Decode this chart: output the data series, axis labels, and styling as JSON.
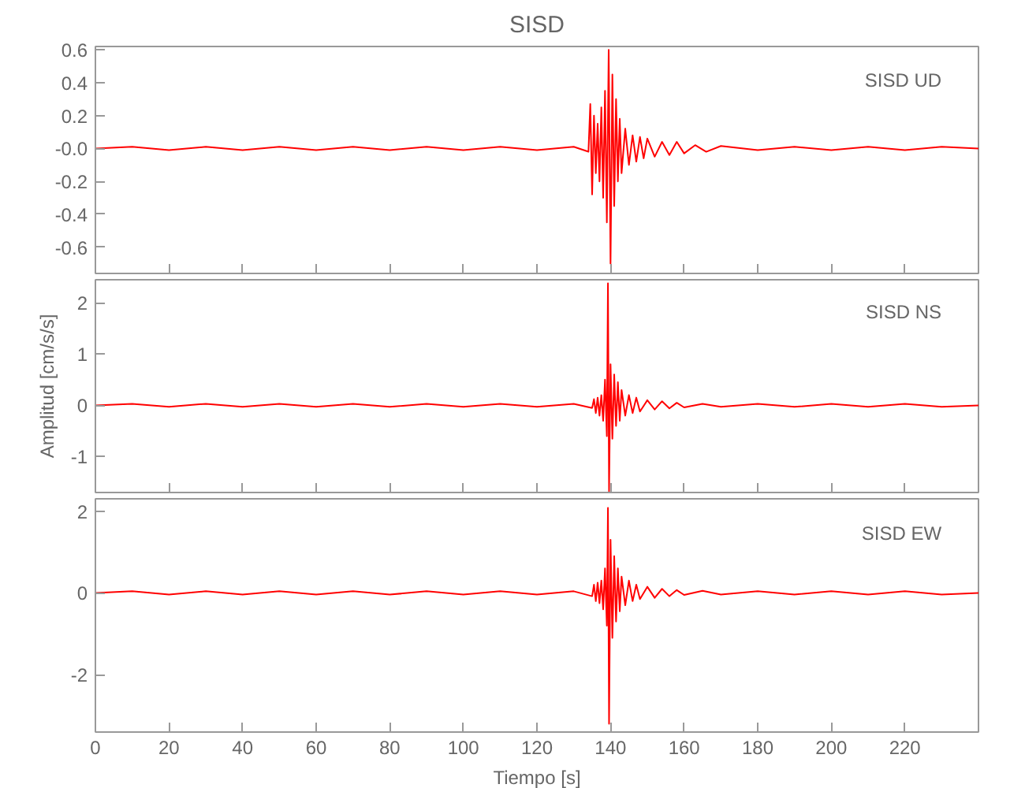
{
  "chart_data": [
    {
      "type": "line",
      "title": "SISD",
      "annotations": [
        "SISD   UD"
      ],
      "xlim": [
        0,
        240
      ],
      "xticks": [
        0,
        20,
        40,
        60,
        80,
        100,
        120,
        140,
        160,
        180,
        200,
        220
      ],
      "ylim": [
        -0.76,
        0.62
      ],
      "yticks": [
        -0.6,
        -0.4,
        -0.2,
        {
          "value": 0,
          "label": "-0.0"
        },
        0.2,
        0.4,
        0.6
      ],
      "tick_labels": "y",
      "grid": false,
      "x": [
        0,
        10,
        20,
        30,
        40,
        50,
        60,
        70,
        80,
        90,
        100,
        110,
        120,
        130,
        134,
        134.5,
        135,
        135.5,
        136,
        136.5,
        137,
        137.5,
        138,
        138.5,
        139,
        139.5,
        140,
        140.5,
        141,
        141.5,
        142,
        142.5,
        143,
        144,
        145,
        146,
        147,
        148,
        149,
        150,
        152,
        154,
        156,
        158,
        160,
        163,
        166,
        170,
        180,
        190,
        200,
        210,
        220,
        230,
        240
      ],
      "series": [
        {
          "color": "#ff0000",
          "values": [
            0,
            0.01,
            -0.01,
            0.01,
            -0.01,
            0.01,
            -0.01,
            0.01,
            -0.01,
            0.01,
            -0.01,
            0.01,
            -0.01,
            0.01,
            -0.02,
            0.27,
            -0.28,
            0.2,
            -0.15,
            0.15,
            -0.2,
            0.25,
            -0.3,
            0.35,
            -0.45,
            0.6,
            -0.7,
            0.45,
            -0.35,
            0.3,
            -0.2,
            0.18,
            -0.15,
            0.12,
            -0.1,
            0.08,
            -0.08,
            0.07,
            -0.06,
            0.06,
            -0.05,
            0.04,
            -0.04,
            0.04,
            -0.03,
            0.02,
            -0.02,
            0.015,
            -0.01,
            0.01,
            -0.01,
            0.01,
            -0.01,
            0.01,
            0
          ]
        }
      ]
    },
    {
      "type": "line",
      "ylabel": "Amplitud [cm/s/s]",
      "annotations": [
        "SISD   NS"
      ],
      "xlim": [
        0,
        240
      ],
      "xticks": [
        0,
        20,
        40,
        60,
        80,
        100,
        120,
        140,
        160,
        180,
        200,
        220
      ],
      "ylim": [
        -1.7,
        2.45
      ],
      "yticks": [
        -1,
        0,
        1,
        2
      ],
      "tick_labels": "y",
      "grid": false,
      "x": [
        0,
        10,
        20,
        30,
        40,
        50,
        60,
        70,
        80,
        90,
        100,
        110,
        120,
        130,
        135,
        135.5,
        136,
        136.5,
        137,
        137.5,
        138,
        138.5,
        139,
        139.3,
        139.6,
        140,
        140.5,
        141,
        141.5,
        142,
        142.5,
        143,
        144,
        145,
        146,
        147,
        148,
        150,
        152,
        154,
        156,
        158,
        160,
        165,
        170,
        180,
        190,
        200,
        210,
        220,
        230,
        240
      ],
      "series": [
        {
          "color": "#ff0000",
          "values": [
            0,
            0.03,
            -0.03,
            0.03,
            -0.03,
            0.03,
            -0.03,
            0.03,
            -0.03,
            0.03,
            -0.03,
            0.03,
            -0.03,
            0.03,
            -0.05,
            0.12,
            -0.15,
            0.15,
            -0.2,
            0.2,
            -0.3,
            0.5,
            -0.6,
            2.38,
            -1.68,
            0.8,
            -0.65,
            0.6,
            -0.4,
            0.45,
            -0.3,
            0.3,
            -0.2,
            0.2,
            -0.15,
            0.15,
            -0.12,
            0.1,
            -0.08,
            0.08,
            -0.06,
            0.05,
            -0.04,
            0.03,
            -0.03,
            0.03,
            -0.03,
            0.03,
            -0.03,
            0.03,
            -0.03,
            0
          ]
        }
      ]
    },
    {
      "type": "line",
      "xlabel": "Tiempo [s]",
      "annotations": [
        "SISD   EW"
      ],
      "xlim": [
        0,
        240
      ],
      "xticks": [
        0,
        20,
        40,
        60,
        80,
        100,
        120,
        140,
        160,
        180,
        200,
        220
      ],
      "ylim": [
        -3.4,
        2.3
      ],
      "yticks": [
        -2,
        0,
        2
      ],
      "grid": false,
      "x": [
        0,
        10,
        20,
        30,
        40,
        50,
        60,
        70,
        80,
        90,
        100,
        110,
        120,
        130,
        135,
        135.5,
        136,
        136.5,
        137,
        137.5,
        138,
        138.5,
        139,
        139.3,
        139.6,
        140,
        140.5,
        141,
        141.5,
        142,
        142.5,
        143,
        144,
        145,
        146,
        147,
        148,
        150,
        152,
        154,
        156,
        158,
        160,
        165,
        170,
        180,
        190,
        200,
        210,
        220,
        230,
        240
      ],
      "series": [
        {
          "color": "#ff0000",
          "values": [
            0,
            0.04,
            -0.04,
            0.04,
            -0.04,
            0.04,
            -0.04,
            0.04,
            -0.04,
            0.04,
            -0.04,
            0.04,
            -0.04,
            0.04,
            -0.08,
            0.2,
            -0.2,
            0.25,
            -0.25,
            0.3,
            -0.4,
            0.6,
            -0.8,
            2.08,
            -3.2,
            1.3,
            -1.1,
            0.9,
            -0.7,
            0.6,
            -0.45,
            0.4,
            -0.3,
            0.3,
            -0.2,
            0.2,
            -0.15,
            0.15,
            -0.12,
            0.1,
            -0.08,
            0.07,
            -0.05,
            0.05,
            -0.04,
            0.04,
            -0.04,
            0.04,
            -0.04,
            0.04,
            -0.04,
            0
          ]
        }
      ]
    }
  ]
}
